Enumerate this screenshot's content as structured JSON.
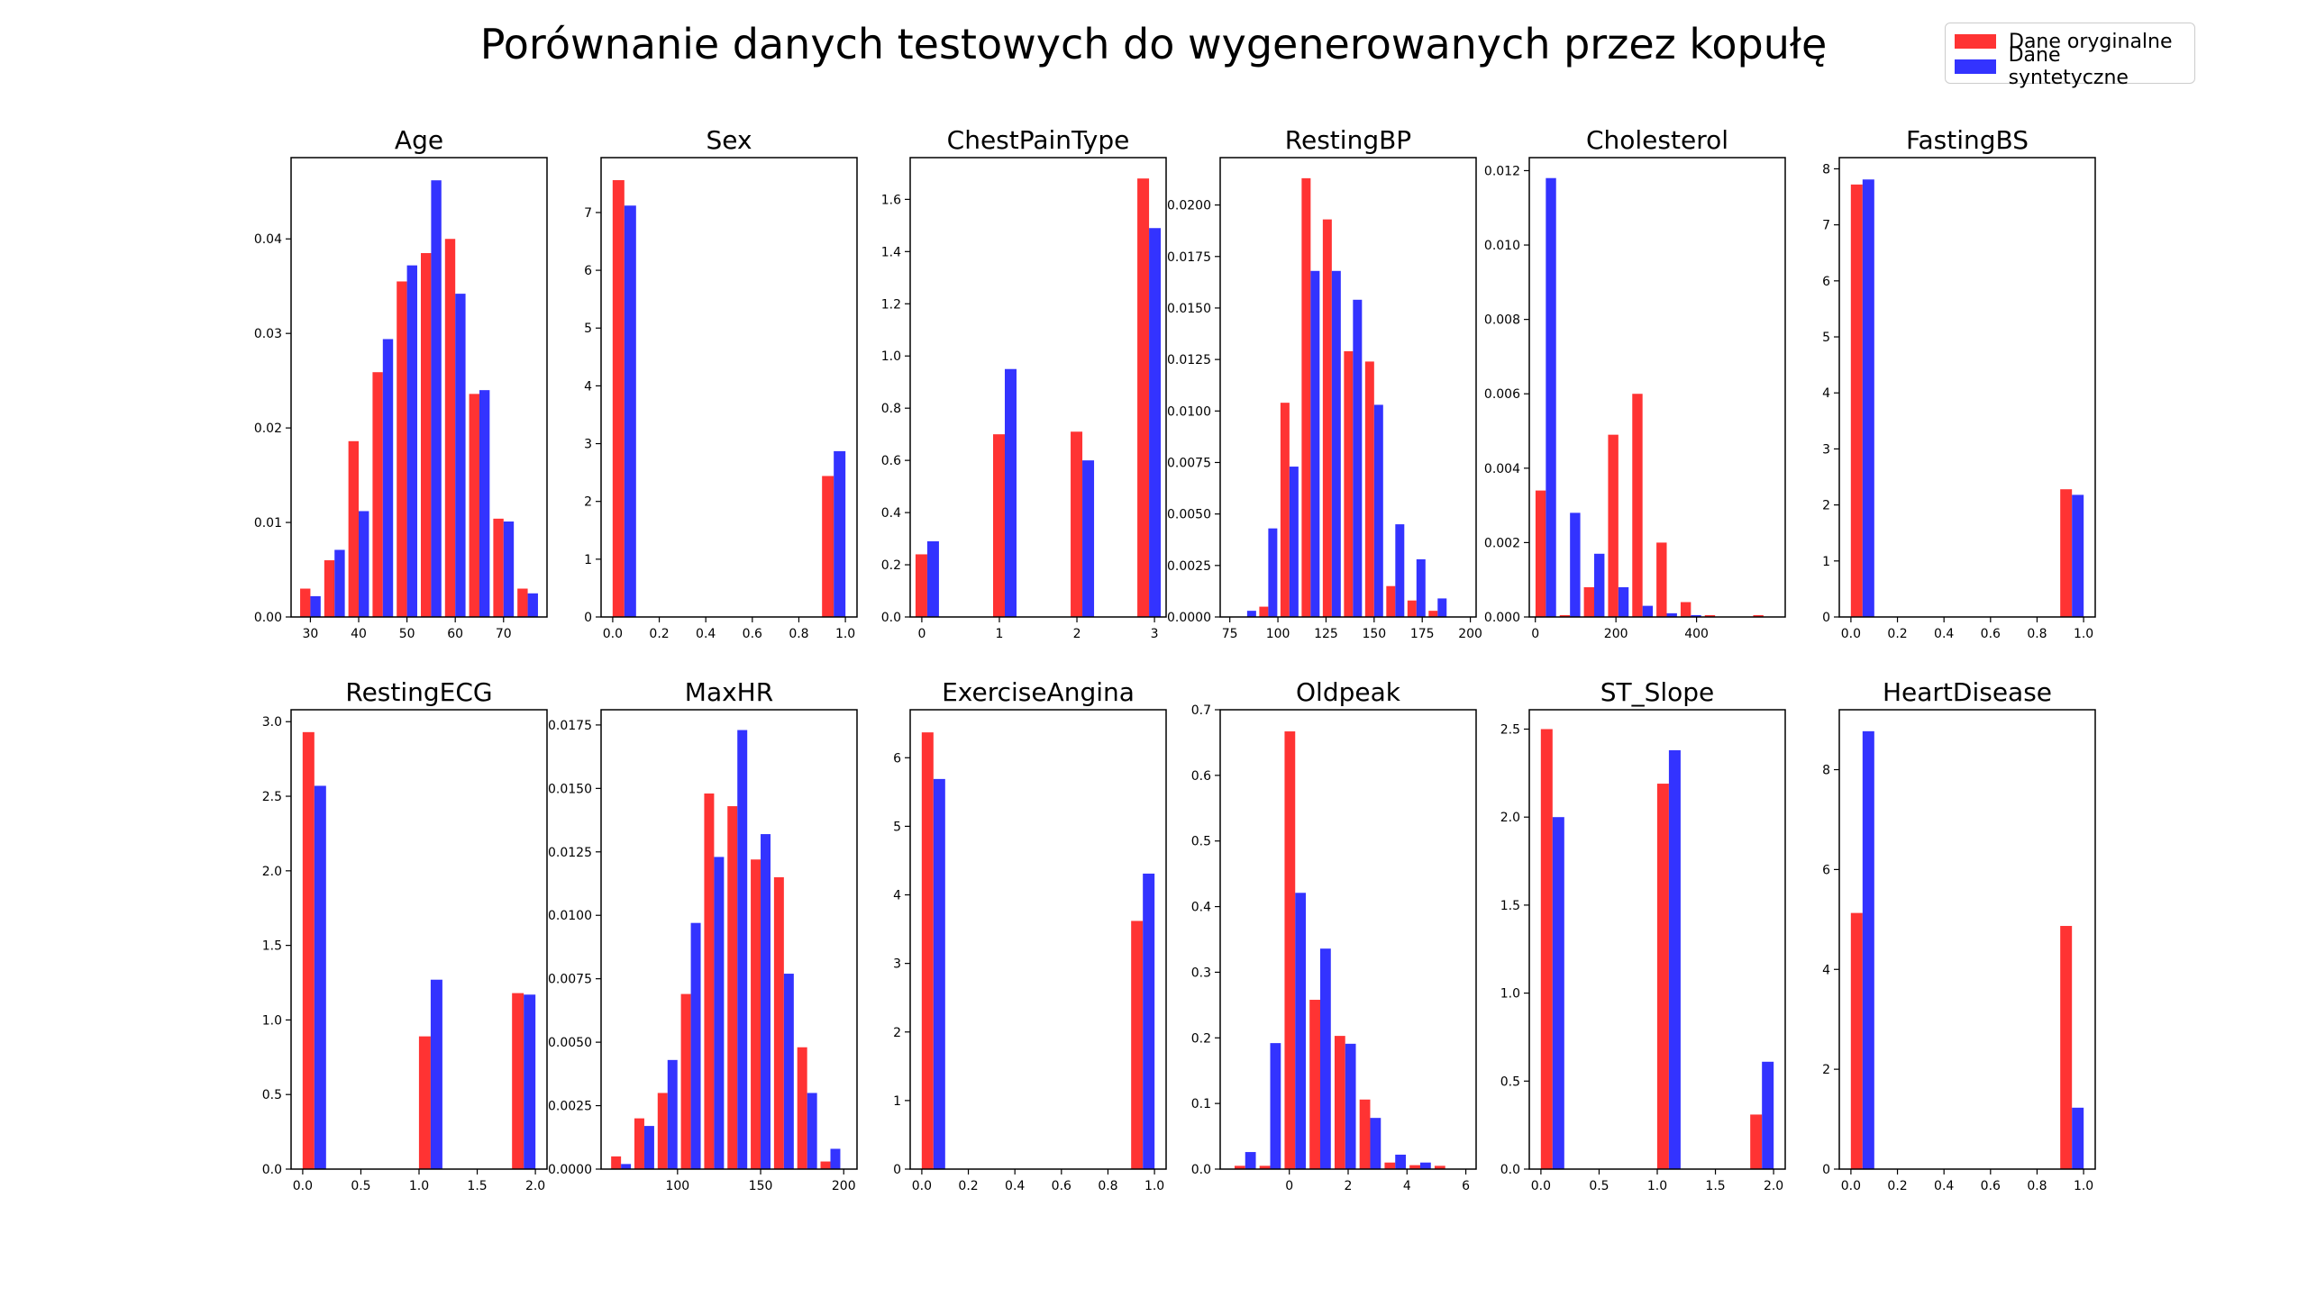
{
  "title": "Porównanie danych testowych do wygenerowanych przez kopułę",
  "legend": {
    "placement": "top-right",
    "items": [
      {
        "label": "Dane oryginalne",
        "color": "#ff3333"
      },
      {
        "label": "Dane syntetyczne",
        "color": "#3333ff"
      }
    ]
  },
  "colors": {
    "original": "#ff3333",
    "synthetic": "#3333ff"
  },
  "chart_data": [
    {
      "type": "bar",
      "title": "Age",
      "xlim": [
        26,
        79
      ],
      "ylim": [
        0,
        0.0486
      ],
      "xticks": [
        30,
        40,
        50,
        60,
        70
      ],
      "xtick_labels": [
        "30",
        "40",
        "50",
        "60",
        "70"
      ],
      "yticks": [
        0,
        0.01,
        0.02,
        0.03,
        0.04
      ],
      "ytick_labels": [
        "0.00",
        "0.01",
        "0.02",
        "0.03",
        "0.04"
      ],
      "x": [
        30,
        35,
        40,
        45,
        50,
        55,
        60,
        65,
        70,
        75
      ],
      "series": [
        {
          "name": "Dane oryginalne",
          "values": [
            0.003,
            0.006,
            0.0186,
            0.0259,
            0.0355,
            0.0385,
            0.04,
            0.0236,
            0.0104,
            0.003
          ]
        },
        {
          "name": "Dane syntetyczne",
          "values": [
            0.0022,
            0.0071,
            0.0112,
            0.0294,
            0.0372,
            0.0462,
            0.0342,
            0.024,
            0.0101,
            0.0025
          ]
        }
      ]
    },
    {
      "type": "bar",
      "title": "Sex",
      "xlim": [
        -0.05,
        1.05
      ],
      "ylim": [
        0,
        7.95
      ],
      "xticks": [
        0,
        0.2,
        0.4,
        0.6,
        0.8,
        1.0
      ],
      "xtick_labels": [
        "0.0",
        "0.2",
        "0.4",
        "0.6",
        "0.8",
        "1.0"
      ],
      "yticks": [
        0,
        1,
        2,
        3,
        4,
        5,
        6,
        7
      ],
      "ytick_labels": [
        "0",
        "1",
        "2",
        "3",
        "4",
        "5",
        "6",
        "7"
      ],
      "x": [
        0.05,
        0.95
      ],
      "series": [
        {
          "name": "Dane oryginalne",
          "values": [
            7.56,
            2.44
          ]
        },
        {
          "name": "Dane syntetyczne",
          "values": [
            7.12,
            2.87
          ]
        }
      ]
    },
    {
      "type": "bar",
      "title": "ChestPainType",
      "xlim": [
        -0.15,
        3.15
      ],
      "ylim": [
        0,
        1.76
      ],
      "xticks": [
        0,
        1,
        2,
        3
      ],
      "xtick_labels": [
        "0",
        "1",
        "2",
        "3"
      ],
      "yticks": [
        0,
        0.2,
        0.4,
        0.6,
        0.8,
        1.0,
        1.2,
        1.4,
        1.6
      ],
      "ytick_labels": [
        "0.0",
        "0.2",
        "0.4",
        "0.6",
        "0.8",
        "1.0",
        "1.2",
        "1.4",
        "1.6"
      ],
      "x": [
        0.07,
        1.07,
        2.07,
        2.93
      ],
      "series": [
        {
          "name": "Dane oryginalne",
          "values": [
            0.24,
            0.7,
            0.71,
            1.68
          ]
        },
        {
          "name": "Dane syntetyczne",
          "values": [
            0.29,
            0.95,
            0.6,
            1.49
          ]
        }
      ]
    },
    {
      "type": "bar",
      "title": "RestingBP",
      "xlim": [
        70,
        203
      ],
      "ylim": [
        0,
        0.0223
      ],
      "xticks": [
        75,
        100,
        125,
        150,
        175,
        200
      ],
      "xtick_labels": [
        "75",
        "100",
        "125",
        "150",
        "175",
        "200"
      ],
      "yticks": [
        0,
        0.0025,
        0.005,
        0.0075,
        0.01,
        0.0125,
        0.015,
        0.0175,
        0.02
      ],
      "ytick_labels": [
        "0.0000",
        "0.0025",
        "0.0050",
        "0.0075",
        "0.0100",
        "0.0125",
        "0.0150",
        "0.0175",
        "0.0200"
      ],
      "x": [
        84,
        95,
        106,
        117,
        128,
        139,
        150,
        161,
        172,
        183,
        194
      ],
      "series": [
        {
          "name": "Dane oryginalne",
          "values": [
            0,
            0.0005,
            0.0104,
            0.0213,
            0.0193,
            0.0129,
            0.0124,
            0.0015,
            0.0008,
            0.0003,
            0
          ]
        },
        {
          "name": "Dane syntetyczne",
          "values": [
            0.0003,
            0.0043,
            0.0073,
            0.0168,
            0.0168,
            0.0154,
            0.0103,
            0.0045,
            0.0028,
            0.0009,
            0
          ]
        }
      ]
    },
    {
      "type": "bar",
      "title": "Cholesterol",
      "xlim": [
        -15,
        620
      ],
      "ylim": [
        0,
        0.01235
      ],
      "xticks": [
        0,
        200,
        400
      ],
      "xtick_labels": [
        "0",
        "200",
        "400"
      ],
      "yticks": [
        0,
        0.002,
        0.004,
        0.006,
        0.008,
        0.01,
        0.012
      ],
      "ytick_labels": [
        "0.000",
        "0.002",
        "0.004",
        "0.006",
        "0.008",
        "0.010",
        "0.012"
      ],
      "x": [
        26,
        86,
        146,
        206,
        266,
        326,
        386,
        446,
        506,
        566
      ],
      "series": [
        {
          "name": "Dane oryginalne",
          "values": [
            0.0034,
            5e-05,
            0.0008,
            0.0049,
            0.006,
            0.002,
            0.0004,
            5e-05,
            0,
            5e-05
          ]
        },
        {
          "name": "Dane syntetyczne",
          "values": [
            0.0118,
            0.0028,
            0.0017,
            0.0008,
            0.0003,
            0.0001,
            5e-05,
            0,
            0,
            0
          ]
        }
      ]
    },
    {
      "type": "bar",
      "title": "FastingBS",
      "xlim": [
        -0.05,
        1.05
      ],
      "ylim": [
        0,
        8.2
      ],
      "xticks": [
        0,
        0.2,
        0.4,
        0.6,
        0.8,
        1.0
      ],
      "xtick_labels": [
        "0.0",
        "0.2",
        "0.4",
        "0.6",
        "0.8",
        "1.0"
      ],
      "yticks": [
        0,
        1,
        2,
        3,
        4,
        5,
        6,
        7,
        8
      ],
      "ytick_labels": [
        "0",
        "1",
        "2",
        "3",
        "4",
        "5",
        "6",
        "7",
        "8"
      ],
      "x": [
        0.05,
        0.95
      ],
      "series": [
        {
          "name": "Dane oryginalne",
          "values": [
            7.72,
            2.28
          ]
        },
        {
          "name": "Dane syntetyczne",
          "values": [
            7.81,
            2.18
          ]
        }
      ]
    },
    {
      "type": "bar",
      "title": "RestingECG",
      "xlim": [
        -0.1,
        2.1
      ],
      "ylim": [
        0,
        3.08
      ],
      "xticks": [
        0,
        0.5,
        1.0,
        1.5,
        2.0
      ],
      "xtick_labels": [
        "0.0",
        "0.5",
        "1.0",
        "1.5",
        "2.0"
      ],
      "yticks": [
        0,
        0.5,
        1.0,
        1.5,
        2.0,
        2.5,
        3.0
      ],
      "ytick_labels": [
        "0.0",
        "0.5",
        "1.0",
        "1.5",
        "2.0",
        "2.5",
        "3.0"
      ],
      "x": [
        0.1,
        1.1,
        1.9
      ],
      "series": [
        {
          "name": "Dane oryginalne",
          "values": [
            2.93,
            0.89,
            1.18
          ]
        },
        {
          "name": "Dane syntetyczne",
          "values": [
            2.57,
            1.27,
            1.17
          ]
        }
      ]
    },
    {
      "type": "bar",
      "title": "MaxHR",
      "xlim": [
        54,
        208
      ],
      "ylim": [
        0,
        0.0181
      ],
      "xticks": [
        100,
        150,
        200
      ],
      "xtick_labels": [
        "100",
        "150",
        "200"
      ],
      "yticks": [
        0,
        0.0025,
        0.005,
        0.0075,
        0.01,
        0.0125,
        0.015,
        0.0175
      ],
      "ytick_labels": [
        "0.0000",
        "0.0025",
        "0.0050",
        "0.0075",
        "0.0100",
        "0.0125",
        "0.0150",
        "0.0175"
      ],
      "x": [
        66,
        80,
        94,
        108,
        122,
        136,
        150,
        164,
        178,
        192,
        206
      ],
      "series": [
        {
          "name": "Dane oryginalne",
          "values": [
            0.0005,
            0.002,
            0.003,
            0.0069,
            0.0148,
            0.0143,
            0.0122,
            0.0115,
            0.0048,
            0.0003,
            0
          ]
        },
        {
          "name": "Dane syntetyczne",
          "values": [
            0.0002,
            0.0017,
            0.0043,
            0.0097,
            0.0123,
            0.0173,
            0.0132,
            0.0077,
            0.003,
            0.0008,
            0
          ]
        }
      ]
    },
    {
      "type": "bar",
      "title": "ExerciseAngina",
      "xlim": [
        -0.05,
        1.05
      ],
      "ylim": [
        0,
        6.7
      ],
      "xticks": [
        0,
        0.2,
        0.4,
        0.6,
        0.8,
        1.0
      ],
      "xtick_labels": [
        "0.0",
        "0.2",
        "0.4",
        "0.6",
        "0.8",
        "1.0"
      ],
      "yticks": [
        0,
        1,
        2,
        3,
        4,
        5,
        6
      ],
      "ytick_labels": [
        "0",
        "1",
        "2",
        "3",
        "4",
        "5",
        "6"
      ],
      "x": [
        0.05,
        0.95
      ],
      "series": [
        {
          "name": "Dane oryginalne",
          "values": [
            6.37,
            3.62
          ]
        },
        {
          "name": "Dane syntetyczne",
          "values": [
            5.69,
            4.31
          ]
        }
      ]
    },
    {
      "type": "bar",
      "title": "Oldpeak",
      "xlim": [
        -2.35,
        6.35
      ],
      "ylim": [
        0,
        0.7
      ],
      "xticks": [
        0,
        2,
        4,
        6
      ],
      "xtick_labels": [
        "0",
        "2",
        "4",
        "6"
      ],
      "yticks": [
        0,
        0.1,
        0.2,
        0.3,
        0.4,
        0.5,
        0.6,
        0.7
      ],
      "ytick_labels": [
        "0.0",
        "0.1",
        "0.2",
        "0.3",
        "0.4",
        "0.5",
        "0.6",
        "0.7"
      ],
      "x": [
        -1.5,
        -0.65,
        0.2,
        1.05,
        1.9,
        2.75,
        3.6,
        4.45,
        5.3
      ],
      "series": [
        {
          "name": "Dane oryginalne",
          "values": [
            0.005,
            0.005,
            0.667,
            0.258,
            0.203,
            0.106,
            0.01,
            0.006,
            0.005
          ]
        },
        {
          "name": "Dane syntetyczne",
          "values": [
            0.026,
            0.192,
            0.421,
            0.336,
            0.191,
            0.078,
            0.022,
            0.01,
            0
          ]
        }
      ]
    },
    {
      "type": "bar",
      "title": "ST_Slope",
      "xlim": [
        -0.1,
        2.1
      ],
      "ylim": [
        0,
        2.61
      ],
      "xticks": [
        0,
        0.5,
        1.0,
        1.5,
        2.0
      ],
      "xtick_labels": [
        "0.0",
        "0.5",
        "1.0",
        "1.5",
        "2.0"
      ],
      "yticks": [
        0,
        0.5,
        1.0,
        1.5,
        2.0,
        2.5
      ],
      "ytick_labels": [
        "0.0",
        "0.5",
        "1.0",
        "1.5",
        "2.0",
        "2.5"
      ],
      "x": [
        0.1,
        1.1,
        1.9
      ],
      "series": [
        {
          "name": "Dane oryginalne",
          "values": [
            2.5,
            2.19,
            0.31
          ]
        },
        {
          "name": "Dane syntetyczne",
          "values": [
            2.0,
            2.38,
            0.61
          ]
        }
      ]
    },
    {
      "type": "bar",
      "title": "HeartDisease",
      "xlim": [
        -0.05,
        1.05
      ],
      "ylim": [
        0,
        9.2
      ],
      "xticks": [
        0,
        0.2,
        0.4,
        0.6,
        0.8,
        1.0
      ],
      "xtick_labels": [
        "0.0",
        "0.2",
        "0.4",
        "0.6",
        "0.8",
        "1.0"
      ],
      "yticks": [
        0,
        2,
        4,
        6,
        8
      ],
      "ytick_labels": [
        "0",
        "2",
        "4",
        "6",
        "8"
      ],
      "x": [
        0.05,
        0.95
      ],
      "series": [
        {
          "name": "Dane oryginalne",
          "values": [
            5.13,
            4.87
          ]
        },
        {
          "name": "Dane syntetyczne",
          "values": [
            8.77,
            1.23
          ]
        }
      ]
    }
  ]
}
